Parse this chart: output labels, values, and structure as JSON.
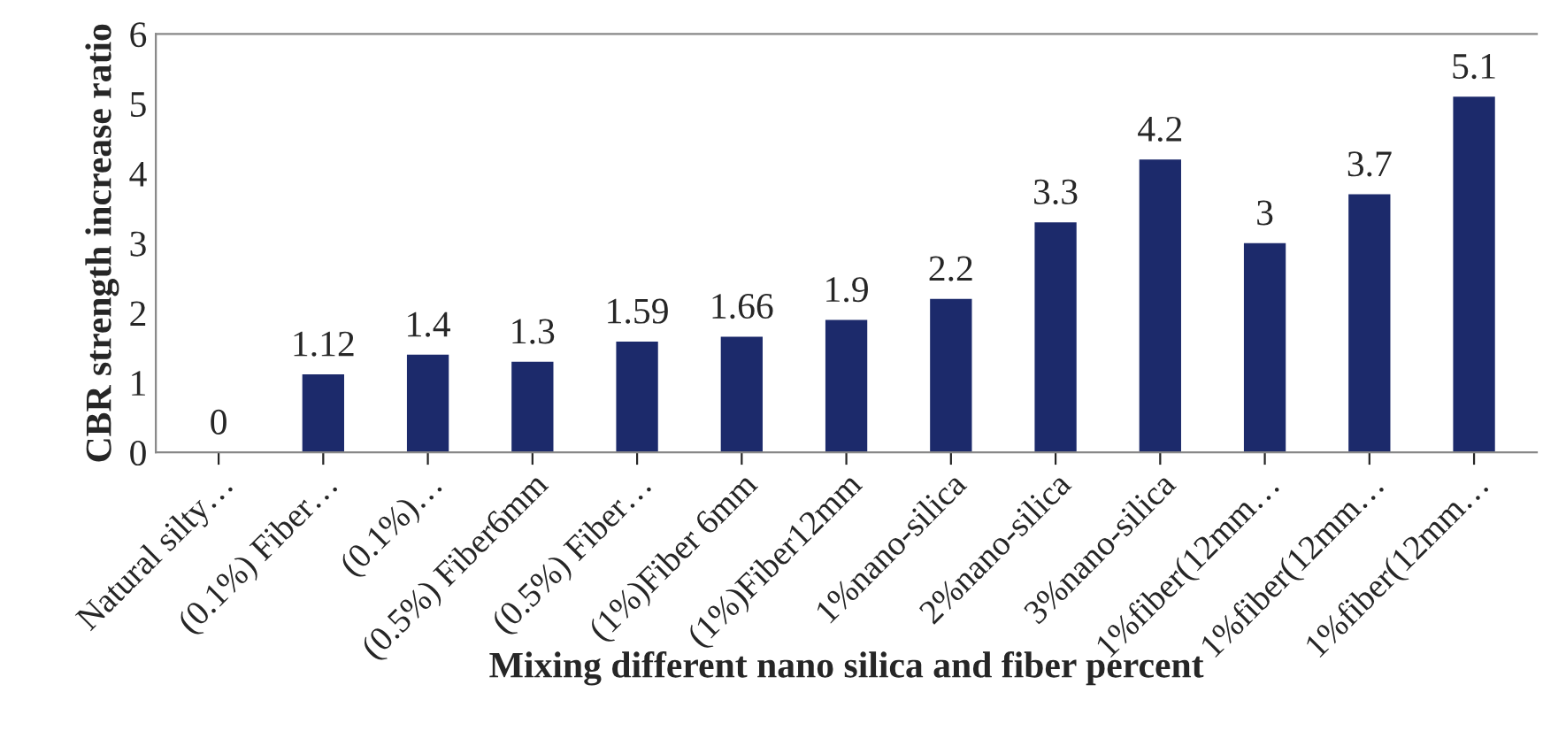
{
  "chart_data": {
    "type": "bar",
    "xlabel": "Mixing different nano silica and fiber percent",
    "ylabel": "CBR strength increase ratio",
    "categories": [
      "Natural silty…",
      "(0.1%) Fiber…",
      "(0.1%)…",
      "(0.5%) Fiber6mm",
      "(0.5%) Fiber…",
      "(1%)Fiber 6mm",
      "(1%)Fiber12mm",
      "1%nano-silica",
      "2%nano-silica",
      "3%nano-silica",
      "1%fiber(12mm…",
      "1%fiber(12mm…",
      "1%fiber(12mm…"
    ],
    "values": [
      0,
      1.12,
      1.4,
      1.3,
      1.59,
      1.66,
      1.9,
      2.2,
      3.3,
      4.2,
      3,
      3.7,
      5.1
    ],
    "color": "#1c2a6b",
    "ylim": [
      0,
      6
    ],
    "yticks": [
      0,
      1,
      2,
      3,
      4,
      5,
      6
    ],
    "data_labels": true,
    "grid": false,
    "legend": false
  }
}
